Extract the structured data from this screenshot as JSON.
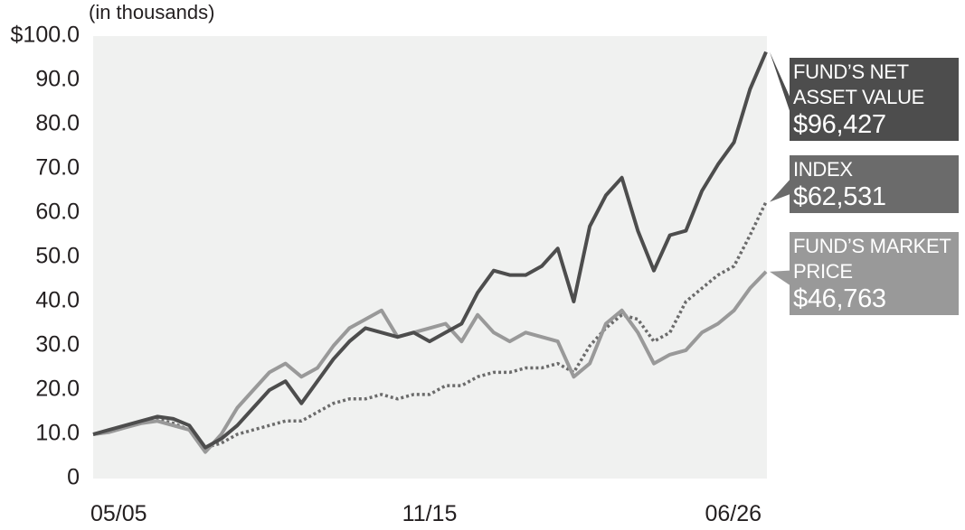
{
  "chart_data": {
    "type": "line",
    "y_label": "(in thousands)",
    "categories": [
      "05/05",
      null,
      null,
      null,
      null,
      null,
      null,
      null,
      null,
      null,
      null,
      null,
      null,
      null,
      null,
      null,
      null,
      null,
      null,
      null,
      null,
      "11/15",
      null,
      null,
      null,
      null,
      null,
      null,
      null,
      null,
      null,
      null,
      null,
      null,
      null,
      null,
      null,
      null,
      null,
      null,
      null,
      null,
      "06/26"
    ],
    "ylim": [
      0,
      100
    ],
    "yticks": [
      0,
      {
        "value": 10,
        "label": "10.0"
      },
      {
        "value": 20,
        "label": "20.0"
      },
      {
        "value": 30,
        "label": "30.0"
      },
      {
        "value": 40,
        "label": "40.0"
      },
      {
        "value": 50,
        "label": "50.0"
      },
      {
        "value": 60,
        "label": "60.0"
      },
      {
        "value": 70,
        "label": "70.0"
      },
      {
        "value": 80,
        "label": "80.0"
      },
      {
        "value": 90,
        "label": "90.0"
      },
      {
        "value": 100,
        "label": "$100.0"
      }
    ],
    "grid": false,
    "series": [
      {
        "name": "FUND’S NET ASSET VALUE",
        "color": "#4d4d4d",
        "style": "solid",
        "values": [
          10,
          11,
          12,
          13,
          14,
          13.5,
          12,
          7,
          9,
          12,
          16,
          20,
          22,
          17,
          22,
          27,
          31,
          34,
          33,
          32,
          33,
          31,
          33,
          35,
          42,
          47,
          46,
          46,
          48,
          52,
          40,
          57,
          64,
          68,
          56,
          47,
          55,
          56,
          65,
          71,
          76,
          88,
          96.427
        ],
        "value_labels": [
          null,
          null,
          null,
          null,
          null,
          null,
          null,
          null,
          null,
          null,
          null,
          null,
          null,
          null,
          null,
          null,
          null,
          null,
          null,
          null,
          null,
          null,
          null,
          null,
          null,
          null,
          null,
          null,
          null,
          null,
          null,
          null,
          null,
          null,
          null,
          null,
          null,
          null,
          null,
          null,
          null,
          null,
          "$96,427"
        ]
      },
      {
        "name": "INDEX",
        "color": "#6b6b6b",
        "style": "dotted",
        "values": [
          10,
          10.5,
          12,
          12.5,
          13.5,
          12.5,
          11,
          7,
          8,
          10,
          11,
          12,
          13,
          13,
          15,
          17,
          18,
          18,
          19,
          18,
          19,
          19,
          21,
          21,
          23,
          24,
          24,
          25,
          25,
          26,
          24,
          30,
          34,
          37,
          36,
          31,
          33,
          40,
          43,
          46,
          48,
          55,
          62.531
        ],
        "value_labels": [
          null,
          null,
          null,
          null,
          null,
          null,
          null,
          null,
          null,
          null,
          null,
          null,
          null,
          null,
          null,
          null,
          null,
          null,
          null,
          null,
          null,
          null,
          null,
          null,
          null,
          null,
          null,
          null,
          null,
          null,
          null,
          null,
          null,
          null,
          null,
          null,
          null,
          null,
          null,
          null,
          null,
          null,
          "$62,531"
        ]
      },
      {
        "name": "FUND’S MARKET PRICE",
        "color": "#999999",
        "style": "solid",
        "values": [
          10,
          10.5,
          11.5,
          12.5,
          13,
          12,
          11,
          6,
          10,
          16,
          20,
          24,
          26,
          23,
          25,
          30,
          34,
          36,
          38,
          32,
          33,
          34,
          35,
          31,
          37,
          33,
          31,
          33,
          32,
          31,
          23,
          26,
          35,
          38,
          33,
          26,
          28,
          29,
          33,
          35,
          38,
          43,
          46.763
        ],
        "value_labels": [
          null,
          null,
          null,
          null,
          null,
          null,
          null,
          null,
          null,
          null,
          null,
          null,
          null,
          null,
          null,
          null,
          null,
          null,
          null,
          null,
          null,
          null,
          null,
          null,
          null,
          null,
          null,
          null,
          null,
          null,
          null,
          null,
          null,
          null,
          null,
          null,
          null,
          null,
          null,
          null,
          null,
          null,
          "$46,763"
        ]
      }
    ]
  }
}
